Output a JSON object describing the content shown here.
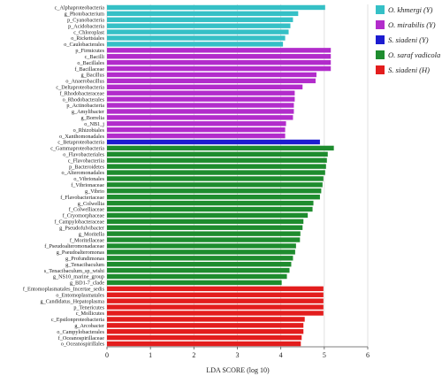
{
  "chart_data": {
    "type": "bar",
    "orientation": "horizontal",
    "xlabel": "LDA SCORE (log 10)",
    "xlim": [
      0,
      6
    ],
    "xticks": [
      0,
      1,
      2,
      3,
      4,
      5,
      6
    ],
    "grid": "vertical",
    "legend_position": "top-right",
    "groups": [
      {
        "name": "O. khmergi (Y)",
        "color": "#35C0C6"
      },
      {
        "name": "O. mirabilis (Y)",
        "color": "#B22CCB"
      },
      {
        "name": "S. siadeni (Y)",
        "color": "#1C1CD0"
      },
      {
        "name": "O. saraf vadicola (H)",
        "color": "#1E8C2E"
      },
      {
        "name": "S. siadeni (H)",
        "color": "#E31D1D"
      }
    ],
    "bars": [
      {
        "label": "c_Alphaproteobacteria",
        "value": 5.02,
        "group": 0
      },
      {
        "label": "g_Photobacterium",
        "value": 4.4,
        "group": 0
      },
      {
        "label": "p_Cyanobacteria",
        "value": 4.28,
        "group": 0
      },
      {
        "label": "p_Acidobacteria",
        "value": 4.22,
        "group": 0
      },
      {
        "label": "c_Chloroplast",
        "value": 4.18,
        "group": 0
      },
      {
        "label": "o_Rickettsiales",
        "value": 4.1,
        "group": 0
      },
      {
        "label": "o_Caulobacterales",
        "value": 4.05,
        "group": 0
      },
      {
        "label": "p_Firmicutes",
        "value": 5.15,
        "group": 1
      },
      {
        "label": "c_Bacilli",
        "value": 5.15,
        "group": 1
      },
      {
        "label": "o_Bacillales",
        "value": 5.15,
        "group": 1
      },
      {
        "label": "f_Bacillaceae",
        "value": 5.15,
        "group": 1
      },
      {
        "label": "g_Bacillus",
        "value": 4.82,
        "group": 1
      },
      {
        "label": "o_Anaerobacillus",
        "value": 4.8,
        "group": 1
      },
      {
        "label": "c_Deltaproteobacteria",
        "value": 4.5,
        "group": 1
      },
      {
        "label": "f_Rhodobacteraceae",
        "value": 4.32,
        "group": 1
      },
      {
        "label": "o_Rhodobacterales",
        "value": 4.32,
        "group": 1
      },
      {
        "label": "p_Actinobacteria",
        "value": 4.3,
        "group": 1
      },
      {
        "label": "g_Amylibacter",
        "value": 4.3,
        "group": 1
      },
      {
        "label": "g_Borrelia",
        "value": 4.28,
        "group": 1
      },
      {
        "label": "o_NB1_j",
        "value": 4.12,
        "group": 1
      },
      {
        "label": "o_Rhizobiales",
        "value": 4.1,
        "group": 1
      },
      {
        "label": "o_Xanthomonadales",
        "value": 4.1,
        "group": 1
      },
      {
        "label": "c_Betaproteobacteria",
        "value": 4.9,
        "group": 2
      },
      {
        "label": "c_Gammaproteobacteria",
        "value": 5.22,
        "group": 3
      },
      {
        "label": "o_Flavobacteriales",
        "value": 5.08,
        "group": 3
      },
      {
        "label": "c_Flavobacteriia",
        "value": 5.06,
        "group": 3
      },
      {
        "label": "p_Bacteroidetes",
        "value": 5.04,
        "group": 3
      },
      {
        "label": "o_Alteromonadales",
        "value": 5.02,
        "group": 3
      },
      {
        "label": "o_Vibrionales",
        "value": 4.98,
        "group": 3
      },
      {
        "label": "f_Vibrionaceae",
        "value": 4.96,
        "group": 3
      },
      {
        "label": "g_Vibrio",
        "value": 4.93,
        "group": 3
      },
      {
        "label": "f_Flavobacteriaceae",
        "value": 4.9,
        "group": 3
      },
      {
        "label": "g_Colwellia",
        "value": 4.75,
        "group": 3
      },
      {
        "label": "f_Colwelliaceae",
        "value": 4.73,
        "group": 3
      },
      {
        "label": "f_Cryomorphaceae",
        "value": 4.62,
        "group": 3
      },
      {
        "label": "f_Campylobacteraceae",
        "value": 4.52,
        "group": 3
      },
      {
        "label": "g_Pseudofulvibacter",
        "value": 4.5,
        "group": 3
      },
      {
        "label": "g_Moritella",
        "value": 4.45,
        "group": 3
      },
      {
        "label": "f_Moritellaceae",
        "value": 4.44,
        "group": 3
      },
      {
        "label": "f_Pseudoalteromonadaceae",
        "value": 4.35,
        "group": 3
      },
      {
        "label": "g_Pseudoalteromonas",
        "value": 4.33,
        "group": 3
      },
      {
        "label": "g_Profundimonas",
        "value": 4.28,
        "group": 3
      },
      {
        "label": "g_Tenacibaculum",
        "value": 4.24,
        "group": 3
      },
      {
        "label": "s_Tenacibaculum_sp_wishi",
        "value": 4.2,
        "group": 3
      },
      {
        "label": "g_NS10_marine_group",
        "value": 4.14,
        "group": 3
      },
      {
        "label": "g_BD1-7_clade",
        "value": 4.02,
        "group": 3
      },
      {
        "label": "f_Entomoplasmatales_Incertae_sedis",
        "value": 4.98,
        "group": 4
      },
      {
        "label": "o_Entomoplasmatales",
        "value": 4.98,
        "group": 4
      },
      {
        "label": "g_Candidatus_Hepatoplasma",
        "value": 4.98,
        "group": 4
      },
      {
        "label": "p_Tenericutes",
        "value": 4.98,
        "group": 4
      },
      {
        "label": "c_Mollicutes",
        "value": 4.98,
        "group": 4
      },
      {
        "label": "c_Epsilonproteobacteria",
        "value": 4.55,
        "group": 4
      },
      {
        "label": "g_Arcobacter",
        "value": 4.52,
        "group": 4
      },
      {
        "label": "o_Campylobacterales",
        "value": 4.52,
        "group": 4
      },
      {
        "label": "f_Oceanospirillaceae",
        "value": 4.48,
        "group": 4
      },
      {
        "label": "o_Oceanospirillales",
        "value": 4.46,
        "group": 4
      }
    ]
  }
}
